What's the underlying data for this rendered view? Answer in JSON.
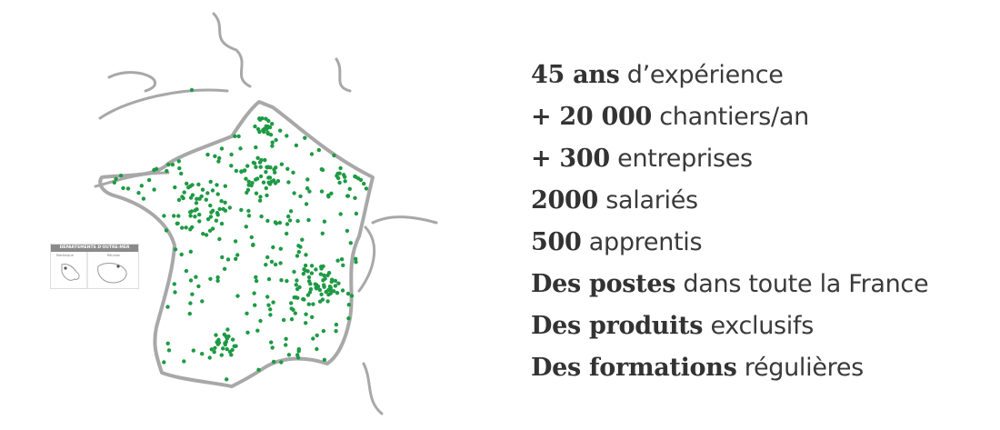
{
  "map": {
    "dot_color": "#1e9a44",
    "outline_color": "#aaaaaa",
    "inset": {
      "title": "DÉPARTEMENTS D'OUTRE-MER",
      "labels": [
        "Martinique",
        "Réunion"
      ]
    }
  },
  "stats": [
    {
      "bold": "45 ans",
      "text": " d’expérience"
    },
    {
      "bold": "+ 20 000",
      "text": " chantiers/an"
    },
    {
      "bold": "+ 300",
      "text": " entreprises"
    },
    {
      "bold": "2000",
      "text": " salariés"
    },
    {
      "bold": "500",
      "text": " apprentis"
    },
    {
      "bold": "Des postes",
      "text": " dans toute la France"
    },
    {
      "bold": "Des produits",
      "text": " exclusifs"
    },
    {
      "bold": "Des formations",
      "text": " régulières"
    }
  ]
}
